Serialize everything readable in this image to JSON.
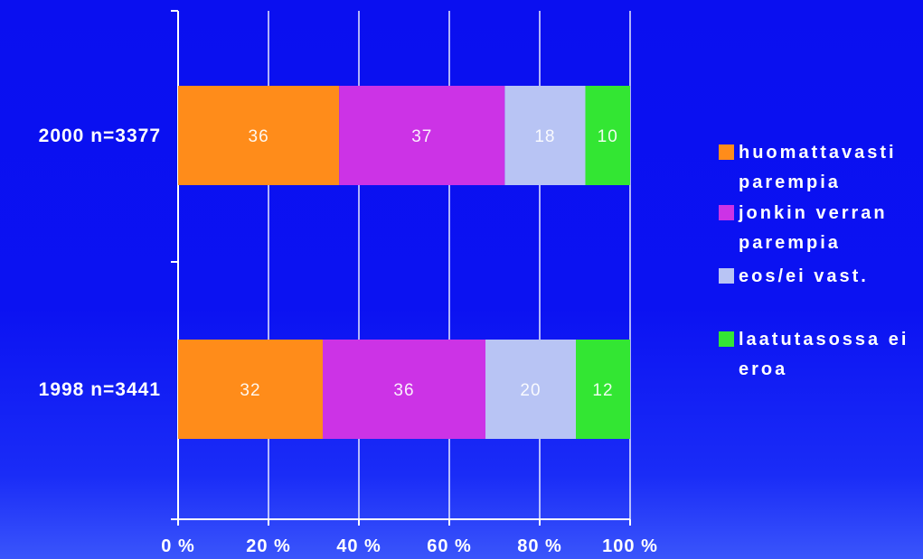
{
  "chart_data": {
    "type": "bar",
    "orientation": "horizontal",
    "stacked": true,
    "percent_stacked": true,
    "categories": [
      "2000 n=3377",
      "1998 n=3441"
    ],
    "series": [
      {
        "name": "huomattavasti parempia",
        "legend_lines": [
          "huomattavasti",
          "parempia"
        ],
        "values": [
          36,
          32
        ],
        "color": "#ff8c1a"
      },
      {
        "name": "jonkin verran parempia",
        "legend_lines": [
          "jonkin verran",
          "parempia"
        ],
        "values": [
          37,
          36
        ],
        "color": "#cc33e6"
      },
      {
        "name": "eos/ei vast.",
        "legend_lines": [
          "eos/ei vast."
        ],
        "values": [
          18,
          20
        ],
        "color": "#b8c4f4"
      },
      {
        "name": "laatutasossa ei eroa",
        "legend_lines": [
          "laatutasossa ei",
          "eroa"
        ],
        "values": [
          10,
          12
        ],
        "color": "#33e633"
      }
    ],
    "x_ticks": [
      "0 %",
      "20 %",
      "40 %",
      "60 %",
      "80 %",
      "100 %"
    ],
    "xlim": [
      0,
      100
    ],
    "grid": true,
    "legend_position": "right",
    "axis_color": "#ffffff",
    "label_color": "#ffffff"
  }
}
